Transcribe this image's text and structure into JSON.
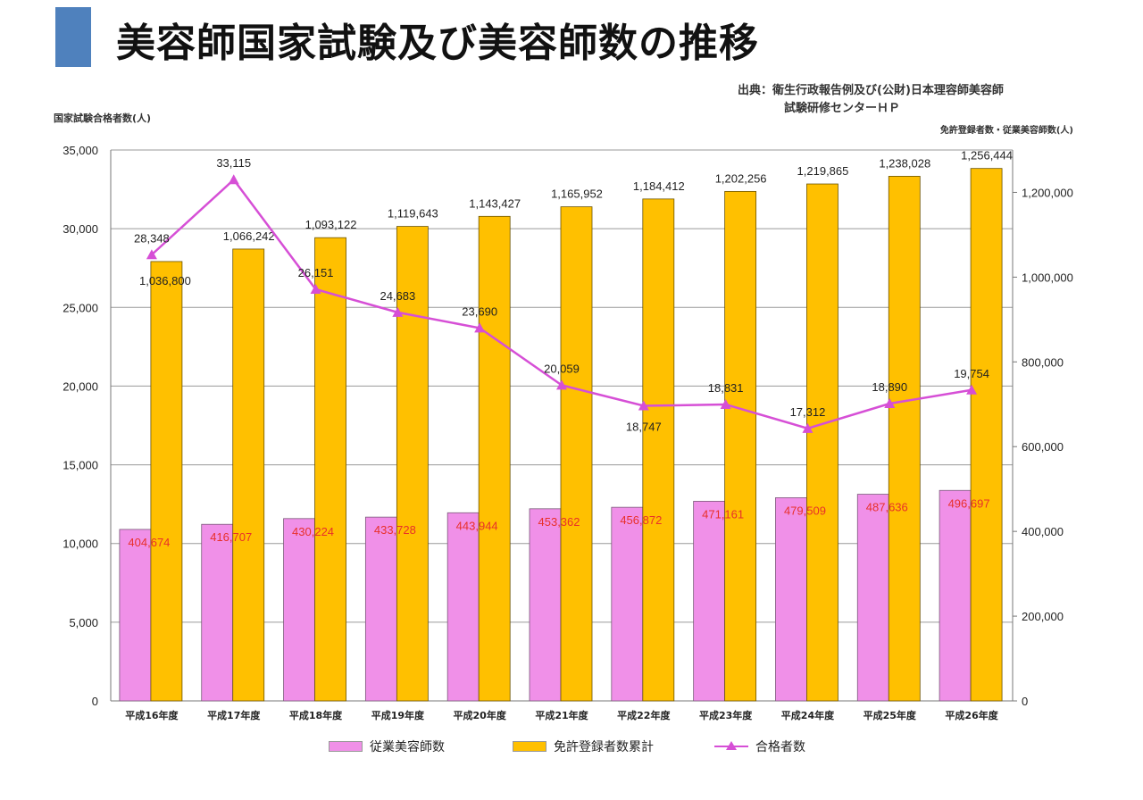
{
  "header": {
    "title": "美容師国家試験及び美容師数の推移",
    "source_line1": "出典：衛生行政報告例及び(公財)日本理容師美容師",
    "source_line2": "試験研修センターＨＰ",
    "accent_color": "#4f81bd"
  },
  "chart_data": {
    "type": "bar",
    "title": "美容師国家試験及び美容師数の推移",
    "left_axis_title": "国家試験合格者数(人)",
    "right_axis_title": "免許登録者数・従業美容師数(人)",
    "categories": [
      "平成16年度",
      "平成17年度",
      "平成18年度",
      "平成19年度",
      "平成20年度",
      "平成21年度",
      "平成22年度",
      "平成23年度",
      "平成24年度",
      "平成25年度",
      "平成26年度"
    ],
    "ylim_left": [
      0,
      35000
    ],
    "ylim_right": [
      0,
      1300000
    ],
    "yticks_left": [
      0,
      5000,
      10000,
      15000,
      20000,
      25000,
      30000,
      35000
    ],
    "yticks_left_labels": [
      "0",
      "5,000",
      "10,000",
      "15,000",
      "20,000",
      "25,000",
      "30,000",
      "35,000"
    ],
    "yticks_right": [
      0,
      200000,
      400000,
      600000,
      800000,
      1000000,
      1200000
    ],
    "yticks_right_labels": [
      "0",
      "200,000",
      "400,000",
      "600,000",
      "800,000",
      "1,000,000",
      "1,200,000"
    ],
    "grid": true,
    "legend_position": "bottom",
    "series": [
      {
        "name": "従業美容師数",
        "kind": "bar",
        "axis": "right",
        "color": "#f090e8",
        "label_color": "#e8302a",
        "values": [
          404674,
          416707,
          430224,
          433728,
          443944,
          453362,
          456872,
          471161,
          479509,
          487636,
          496697
        ],
        "labels": [
          "404,674",
          "416,707",
          "430,224",
          "433,728",
          "443,944",
          "453,362",
          "456,872",
          "471,161",
          "479,509",
          "487,636",
          "496,697"
        ]
      },
      {
        "name": "免許登録者数累計",
        "kind": "bar",
        "axis": "right",
        "color": "#ffc000",
        "label_color": "#222222",
        "values": [
          1036800,
          1066242,
          1093122,
          1119643,
          1143427,
          1165952,
          1184412,
          1202256,
          1219865,
          1238028,
          1256444
        ],
        "labels": [
          "1,036,800",
          "1,066,242",
          "1,093,122",
          "1,119,643",
          "1,143,427",
          "1,165,952",
          "1,184,412",
          "1,202,256",
          "1,219,865",
          "1,238,028",
          "1,256,444"
        ]
      },
      {
        "name": "合格者数",
        "kind": "line",
        "axis": "left",
        "color": "#d64fd6",
        "label_color": "#222222",
        "values": [
          28348,
          33115,
          26151,
          24683,
          23690,
          20059,
          18747,
          18831,
          17312,
          18890,
          19754
        ],
        "labels": [
          "28,348",
          "33,115",
          "26,151",
          "24,683",
          "23,690",
          "20,059",
          "18,747",
          "18,831",
          "17,312",
          "18,890",
          "19,754"
        ]
      }
    ]
  }
}
